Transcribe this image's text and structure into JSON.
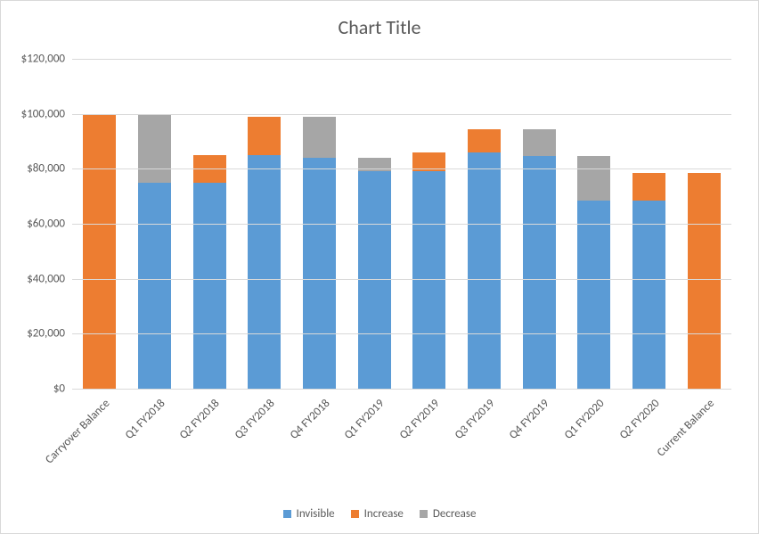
{
  "chart": {
    "type": "bar",
    "title": "Chart Title",
    "title_fontsize": 22,
    "title_color": "#595959",
    "background_color": "#ffffff",
    "border_color": "#d9d9d9",
    "grid_color": "#d9d9d9",
    "grid_width": 1,
    "ylim": [
      0,
      120000
    ],
    "ytick_step": 20000,
    "ytick_prefix": "$",
    "ytick_labels": [
      "$0",
      "$20,000",
      "$40,000",
      "$60,000",
      "$80,000",
      "$100,000",
      "$120,000"
    ],
    "tick_fontsize": 13,
    "tick_color": "#595959",
    "bar_width": 0.6,
    "categories": [
      "Carryover Balance",
      "Q1 FY2018",
      "Q2 FY2018",
      "Q3 FY2018",
      "Q4 FY2018",
      "Q1 FY2019",
      "Q2 FY2019",
      "Q3 FY2019",
      "Q4 FY2019",
      "Q1 FY2020",
      "Q2 FY2020",
      "Current Balance"
    ],
    "x_label_rotation": -45,
    "x_label_fontsize": 13,
    "series": [
      {
        "name": "Invisible",
        "color": "#5b9bd5"
      },
      {
        "name": "Increase",
        "color": "#ed7d31"
      },
      {
        "name": "Decrease",
        "color": "#a6a6a6"
      }
    ],
    "stacks": [
      {
        "Invisible": 0,
        "Increase": 100000,
        "Decrease": 0
      },
      {
        "Invisible": 75000,
        "Increase": 0,
        "Decrease": 25000
      },
      {
        "Invisible": 75000,
        "Increase": 10000,
        "Decrease": 0
      },
      {
        "Invisible": 85000,
        "Increase": 14000,
        "Decrease": 0
      },
      {
        "Invisible": 84000,
        "Increase": 0,
        "Decrease": 15000
      },
      {
        "Invisible": 79000,
        "Increase": 0,
        "Decrease": 5000
      },
      {
        "Invisible": 79000,
        "Increase": 7000,
        "Decrease": 0
      },
      {
        "Invisible": 86000,
        "Increase": 8500,
        "Decrease": 0
      },
      {
        "Invisible": 84500,
        "Increase": 0,
        "Decrease": 10000
      },
      {
        "Invisible": 68500,
        "Increase": 0,
        "Decrease": 16000
      },
      {
        "Invisible": 68500,
        "Increase": 10000,
        "Decrease": 0
      },
      {
        "Invisible": 0,
        "Increase": 78500,
        "Decrease": 0
      }
    ],
    "legend_fontsize": 13,
    "legend_color": "#595959"
  }
}
